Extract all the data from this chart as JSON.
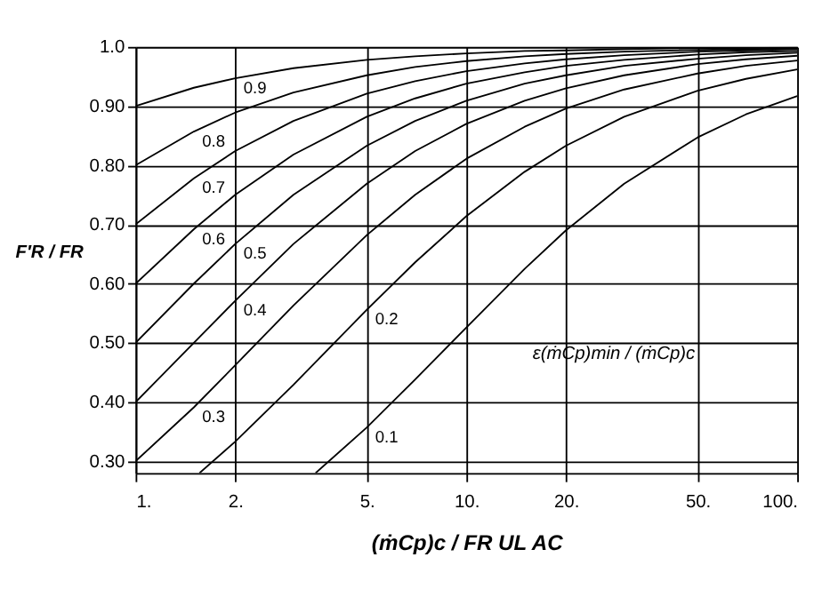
{
  "chart_data": {
    "type": "line",
    "xlabel": "(ṁCp)c / FR UL AC",
    "ylabel": "F′R / FR",
    "annotations": [
      "ε(ṁCp)min / (ṁCp)c"
    ],
    "log": "x",
    "grid": true,
    "marker": "none",
    "line_style": "solid",
    "xlim": [
      1,
      100
    ],
    "ylim": [
      0.28,
      1.0
    ],
    "xticks": [
      {
        "value": 1,
        "label": "1."
      },
      {
        "value": 2,
        "label": "2."
      },
      {
        "value": 5,
        "label": "5."
      },
      {
        "value": 10,
        "label": "10."
      },
      {
        "value": 20,
        "label": "20."
      },
      {
        "value": 50,
        "label": "50."
      },
      {
        "value": 100,
        "label": "100."
      }
    ],
    "yticks": [
      {
        "value": 0.3,
        "label": "0.30"
      },
      {
        "value": 0.4,
        "label": "0.40"
      },
      {
        "value": 0.5,
        "label": "0.50"
      },
      {
        "value": 0.6,
        "label": "0.60"
      },
      {
        "value": 0.7,
        "label": "0.70"
      },
      {
        "value": 0.8,
        "label": "0.80"
      },
      {
        "value": 0.9,
        "label": "0.90"
      },
      {
        "value": 1.0,
        "label": "1.0"
      }
    ],
    "series": [
      {
        "name": "0.9",
        "color": "#000000",
        "x": [
          1,
          1.5,
          2,
          3,
          5,
          7,
          10,
          15,
          20,
          30,
          50,
          70,
          100
        ],
        "values": [
          0.9,
          0.931,
          0.947,
          0.964,
          0.978,
          0.984,
          0.989,
          0.993,
          0.994,
          0.996,
          0.998,
          0.998,
          0.999
        ]
      },
      {
        "name": "0.8",
        "color": "#000000",
        "x": [
          1,
          1.5,
          2,
          3,
          5,
          7,
          10,
          15,
          20,
          30,
          50,
          70,
          100
        ],
        "values": [
          0.8,
          0.857,
          0.889,
          0.923,
          0.952,
          0.966,
          0.976,
          0.984,
          0.988,
          0.992,
          0.995,
          0.996,
          0.998
        ]
      },
      {
        "name": "0.7",
        "color": "#000000",
        "x": [
          1,
          1.5,
          2,
          3,
          5,
          7,
          10,
          15,
          20,
          30,
          50,
          70,
          100
        ],
        "values": [
          0.7,
          0.778,
          0.824,
          0.875,
          0.921,
          0.942,
          0.959,
          0.972,
          0.979,
          0.986,
          0.992,
          0.994,
          0.996
        ]
      },
      {
        "name": "0.6",
        "color": "#000000",
        "x": [
          1,
          1.5,
          2,
          3,
          5,
          7,
          10,
          15,
          20,
          30,
          50,
          70,
          100
        ],
        "values": [
          0.6,
          0.692,
          0.75,
          0.818,
          0.882,
          0.913,
          0.938,
          0.957,
          0.968,
          0.978,
          0.987,
          0.991,
          0.993
        ]
      },
      {
        "name": "0.5",
        "color": "#000000",
        "x": [
          1,
          1.5,
          2,
          3,
          5,
          7,
          10,
          15,
          20,
          30,
          50,
          70,
          100
        ],
        "values": [
          0.5,
          0.6,
          0.667,
          0.75,
          0.833,
          0.875,
          0.909,
          0.938,
          0.952,
          0.968,
          0.98,
          0.986,
          0.99
        ]
      },
      {
        "name": "0.4",
        "color": "#000000",
        "x": [
          1,
          1.5,
          2,
          3,
          5,
          7,
          10,
          15,
          20,
          30,
          50,
          70,
          100
        ],
        "values": [
          0.4,
          0.5,
          0.571,
          0.667,
          0.769,
          0.824,
          0.87,
          0.909,
          0.93,
          0.952,
          0.971,
          0.979,
          0.985
        ]
      },
      {
        "name": "0.3",
        "color": "#000000",
        "x": [
          1,
          1.5,
          2,
          3,
          5,
          7,
          10,
          15,
          20,
          30,
          50,
          70,
          100
        ],
        "values": [
          0.3,
          0.391,
          0.462,
          0.563,
          0.682,
          0.75,
          0.811,
          0.865,
          0.896,
          0.928,
          0.955,
          0.968,
          0.977
        ]
      },
      {
        "name": "0.2",
        "color": "#000000",
        "x": [
          1.56,
          2,
          3,
          5,
          7,
          10,
          15,
          20,
          30,
          50,
          70,
          100
        ],
        "values": [
          0.28,
          0.333,
          0.429,
          0.556,
          0.636,
          0.714,
          0.789,
          0.833,
          0.882,
          0.926,
          0.946,
          0.962
        ]
      },
      {
        "name": "0.1",
        "color": "#000000",
        "x": [
          3.5,
          5,
          7,
          10,
          15,
          20,
          30,
          50,
          70,
          100
        ],
        "values": [
          0.28,
          0.357,
          0.438,
          0.526,
          0.625,
          0.69,
          0.769,
          0.847,
          0.886,
          0.917
        ]
      }
    ]
  }
}
